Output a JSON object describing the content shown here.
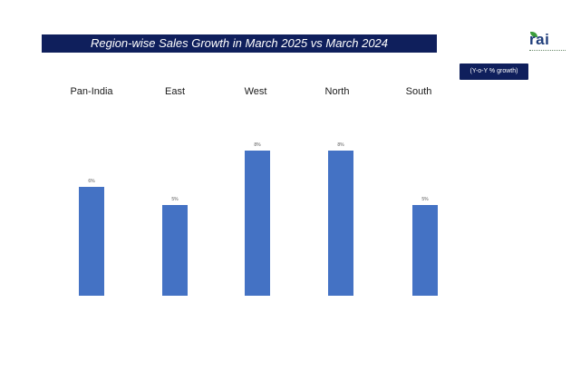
{
  "slide": {
    "title": "Region-wise Sales Growth in March 2025 vs March 2024",
    "badge": "(Y-o-Y % growth)",
    "logo_text": "rai"
  },
  "chart_data": {
    "type": "bar",
    "title": "Region-wise Sales Growth in March 2025 vs March 2024",
    "categories": [
      "Pan-India",
      "East",
      "West",
      "North",
      "South"
    ],
    "values": [
      6,
      5,
      8,
      8,
      5
    ],
    "data_labels": [
      "6%",
      "5%",
      "8%",
      "8%",
      "5%"
    ],
    "ylim": [
      0,
      8
    ],
    "grid": false,
    "legend": "none",
    "bar_color": "#4472c4",
    "category_label_position": "top"
  }
}
